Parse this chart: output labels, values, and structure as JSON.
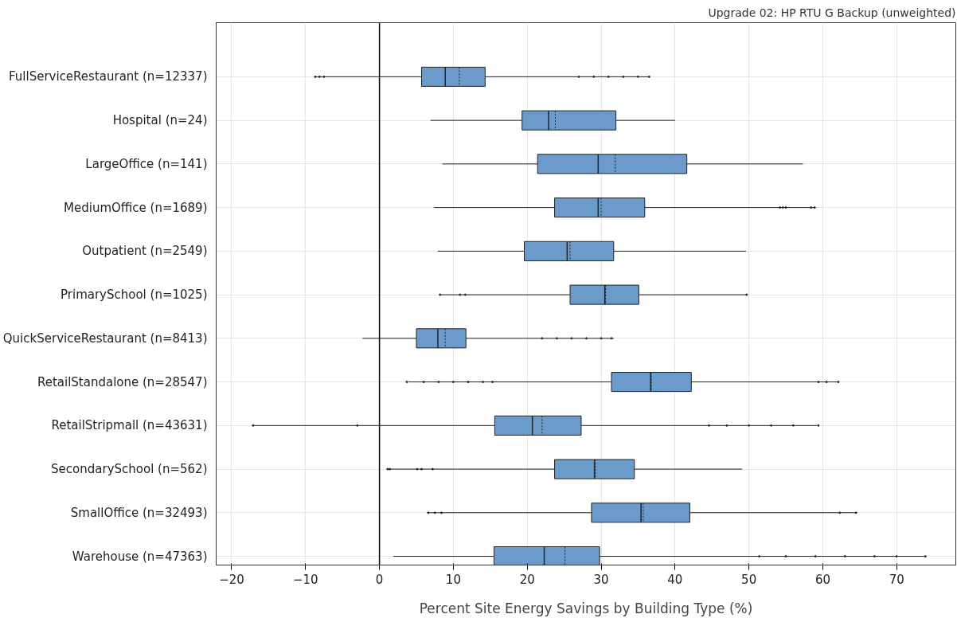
{
  "chart_data": {
    "type": "box",
    "orientation": "horizontal",
    "title": "Upgrade 02: HP RTU G Backup (unweighted)",
    "xlabel": "Percent Site Energy Savings by Building Type (%)",
    "categories": [
      "FullServiceRestaurant (n=12337)",
      "Hospital (n=24)",
      "LargeOffice (n=141)",
      "MediumOffice (n=1689)",
      "Outpatient (n=2549)",
      "PrimarySchool (n=1025)",
      "QuickServiceRestaurant (n=8413)",
      "RetailStandalone (n=28547)",
      "RetailStripmall (n=43631)",
      "SecondarySchool (n=562)",
      "SmallOffice (n=32493)",
      "Warehouse (n=47363)"
    ],
    "color": "#6a9bcb",
    "boxes": [
      {
        "low": -8.7,
        "q1": 5.7,
        "median": 8.9,
        "q3": 14.3,
        "high": 36.4,
        "mean": 10.8,
        "outliers": [
          -8.7,
          -8.1,
          -7.5,
          27,
          29,
          31,
          33,
          35,
          36.5
        ]
      },
      {
        "low": 6.9,
        "q1": 19.3,
        "median": 22.9,
        "q3": 32,
        "high": 40,
        "mean": 23.8
      },
      {
        "low": 8.5,
        "q1": 21.4,
        "median": 29.6,
        "q3": 41.6,
        "high": 57.3,
        "mean": 31.9
      },
      {
        "low": 7.4,
        "q1": 23.7,
        "median": 29.6,
        "q3": 35.9,
        "high": 59,
        "mean": 30,
        "outliers": [
          54.2,
          54.6,
          55,
          58.4,
          58.9
        ]
      },
      {
        "low": 7.9,
        "q1": 19.6,
        "median": 25.4,
        "q3": 31.7,
        "high": 49.6,
        "mean": 25.8
      },
      {
        "low": 8.2,
        "q1": 25.8,
        "median": 30.5,
        "q3": 35.1,
        "high": 49.7,
        "mean": 30.6,
        "outliers": [
          8.2,
          10.9,
          11.6,
          49.7
        ]
      },
      {
        "low": -2.3,
        "q1": 5,
        "median": 7.9,
        "q3": 11.7,
        "high": 31.7,
        "mean": 8.9,
        "outliers": [
          22,
          24,
          26,
          28,
          30,
          31.4
        ]
      },
      {
        "low": 3.9,
        "q1": 31.4,
        "median": 36.7,
        "q3": 42.2,
        "high": 62,
        "mean": 36.8,
        "outliers": [
          3.7,
          6,
          8,
          10,
          12,
          14,
          15.3,
          59.4,
          60.5,
          62.1
        ]
      },
      {
        "low": -17.1,
        "q1": 15.6,
        "median": 20.7,
        "q3": 27.3,
        "high": 59.2,
        "mean": 22,
        "outliers": [
          -17.1,
          -3,
          44.6,
          47,
          50,
          53,
          56,
          59.4
        ]
      },
      {
        "low": 1,
        "q1": 23.7,
        "median": 29.1,
        "q3": 34.5,
        "high": 49.1,
        "mean": 29.2,
        "outliers": [
          1.1,
          1.4,
          5.1,
          5.7,
          7.2
        ]
      },
      {
        "low": 6.6,
        "q1": 28.7,
        "median": 35.4,
        "q3": 42,
        "high": 64.5,
        "mean": 35.7,
        "outliers": [
          6.6,
          7.5,
          8.4,
          62.3,
          64.5
        ]
      },
      {
        "low": 1.9,
        "q1": 15.5,
        "median": 22.3,
        "q3": 29.8,
        "high": 73.9,
        "mean": 25.1,
        "outliers": [
          51.4,
          55,
          59,
          63,
          67,
          70,
          73.9
        ]
      }
    ],
    "ref_lines": [
      {
        "axis": "x",
        "value": 0,
        "color": "#000000"
      }
    ],
    "xlim": [
      -22.1,
      78
    ],
    "xticks": [
      {
        "value": -20,
        "label": "−20"
      },
      {
        "value": -10,
        "label": "−10"
      },
      0,
      10,
      20,
      30,
      40,
      50,
      60,
      70
    ],
    "grid": true
  }
}
